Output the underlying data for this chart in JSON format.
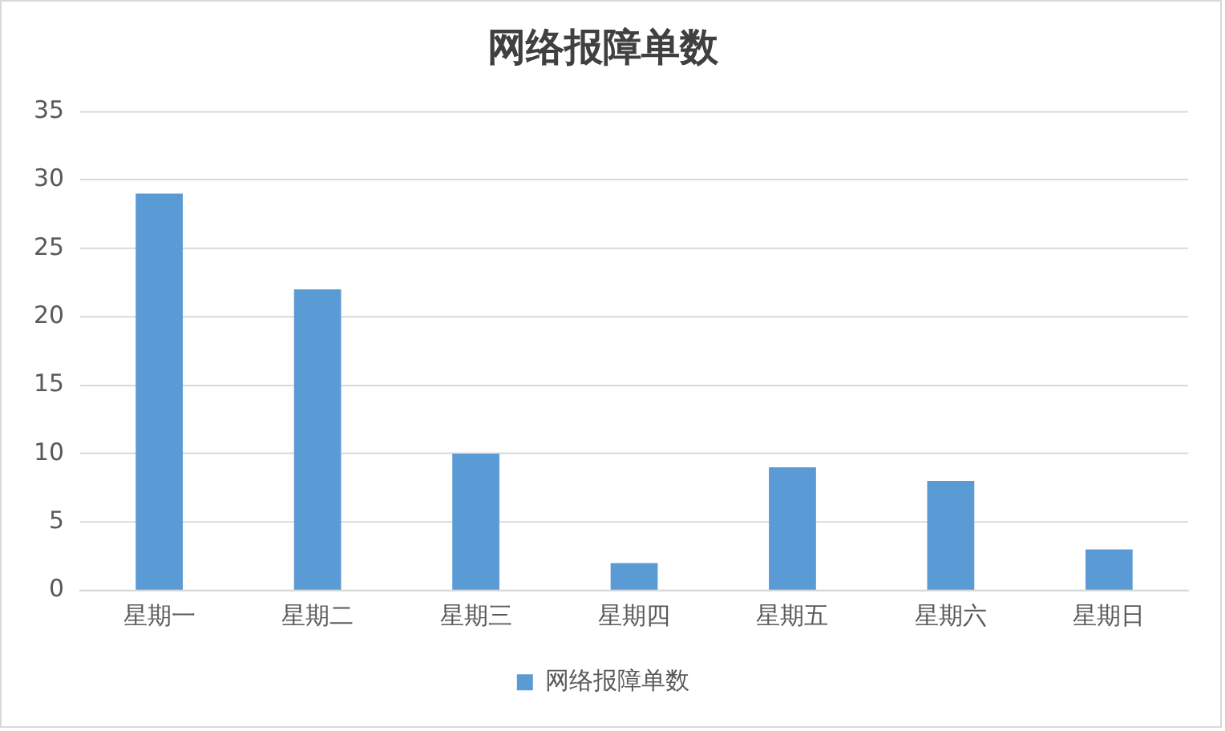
{
  "chart_data": {
    "type": "bar",
    "title": "网络报障单数",
    "categories": [
      "星期一",
      "星期二",
      "星期三",
      "星期四",
      "星期五",
      "星期六",
      "星期日"
    ],
    "series": [
      {
        "name": "网络报障单数",
        "color": "#5b9bd5",
        "values": [
          29,
          22,
          10,
          2,
          9,
          8,
          3
        ]
      }
    ],
    "ylim": [
      0,
      35
    ],
    "yticks": [
      0,
      5,
      10,
      15,
      20,
      25,
      30,
      35
    ],
    "grid": "y",
    "legend": "bottom"
  }
}
